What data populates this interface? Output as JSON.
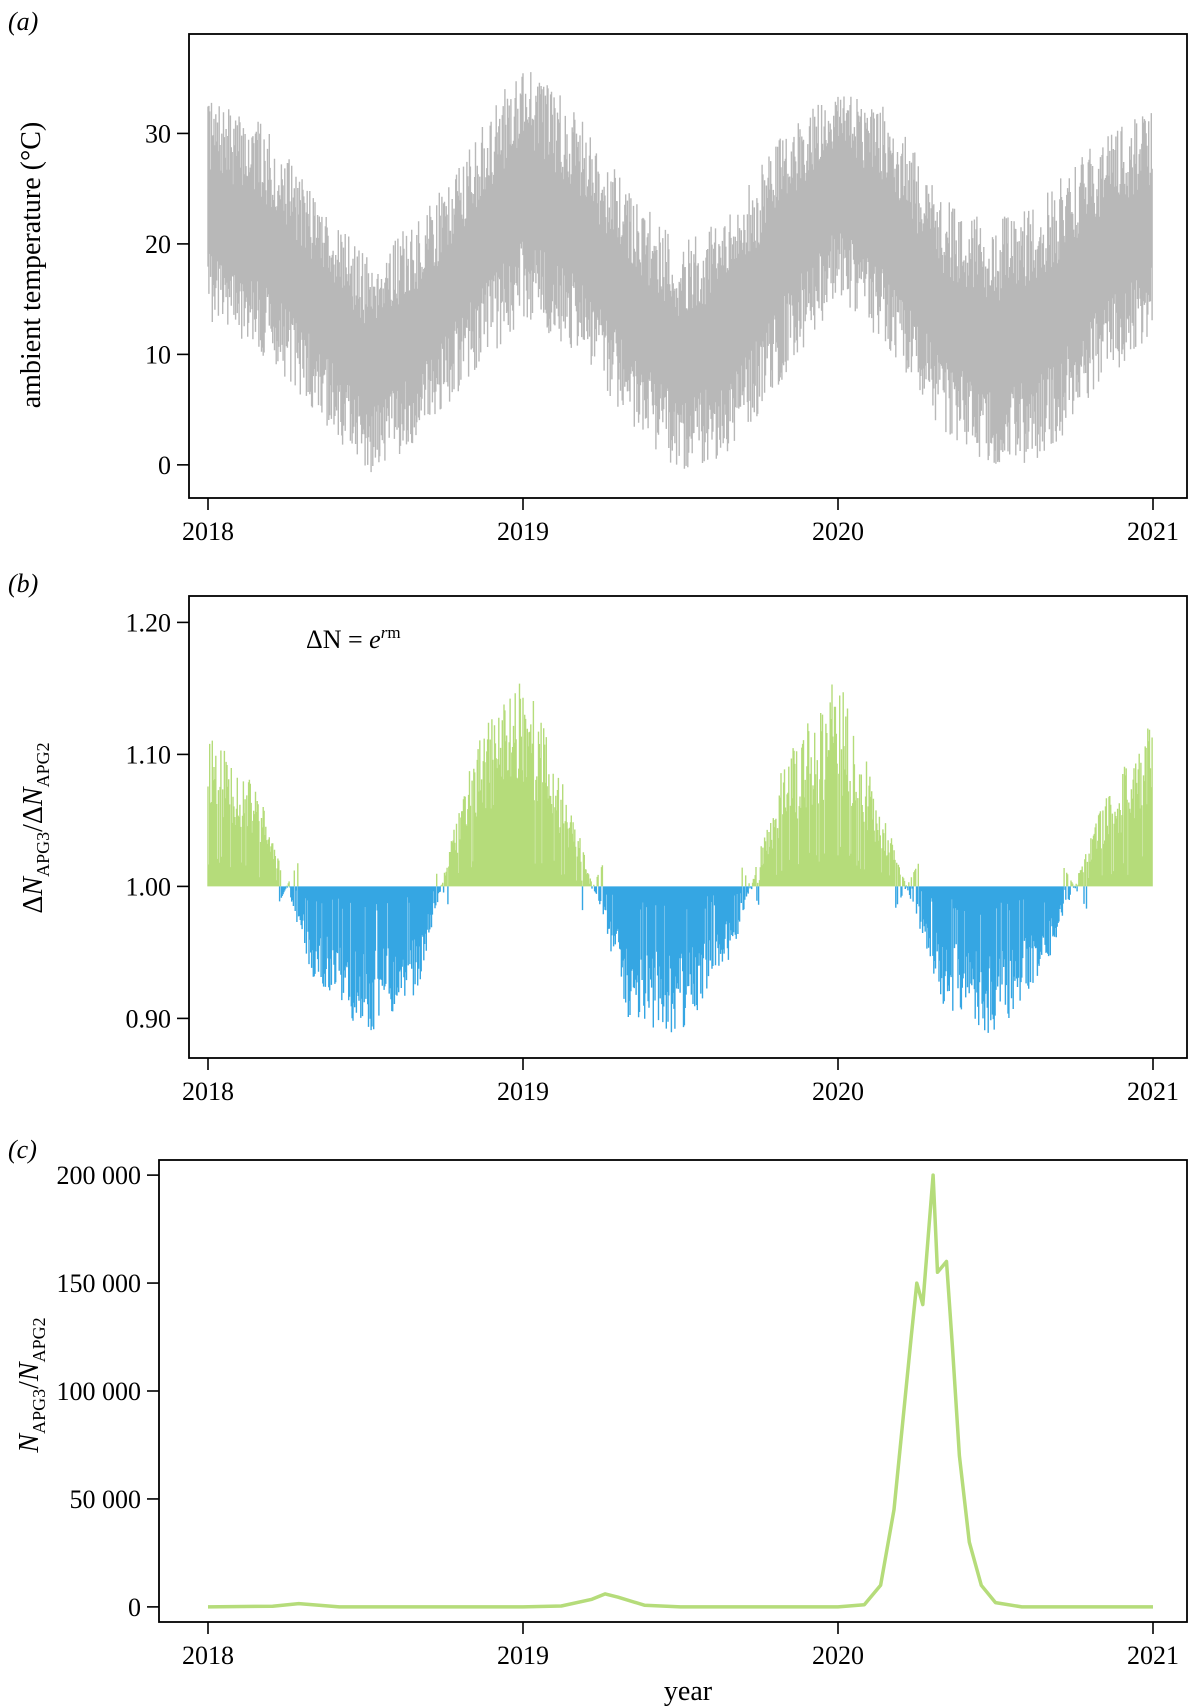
{
  "chart_data": [
    {
      "panel_label": "(a)",
      "type": "line",
      "ylabel": "ambient temperature (°C)",
      "xlabel": "",
      "x_ticks": [
        "2018",
        "2019",
        "2020",
        "2021"
      ],
      "y_ticks": [
        "0",
        "10",
        "20",
        "30"
      ],
      "xlim": [
        "2018",
        "2021"
      ],
      "ylim": [
        -3,
        39
      ],
      "color": "#b8b8b8",
      "description_series": {
        "name": "",
        "x": [
          "2018-01",
          "2018-03",
          "2018-05",
          "2018-07",
          "2018-09",
          "2018-11",
          "2019-01",
          "2019-03",
          "2019-05",
          "2019-07",
          "2019-09",
          "2019-11",
          "2020-01",
          "2020-03",
          "2020-05",
          "2020-07",
          "2020-09",
          "2020-11",
          "2021-01"
        ],
        "min": [
          13,
          10,
          5,
          -1,
          2,
          8,
          13,
          10,
          4,
          -1,
          1,
          8,
          15,
          10,
          3,
          -1,
          1,
          7,
          12
        ],
        "max": [
          33,
          31,
          25,
          19,
          22,
          29,
          37,
          32,
          25,
          20,
          23,
          31,
          35,
          32,
          24,
          22,
          25,
          30,
          32
        ]
      }
    },
    {
      "panel_label": "(b)",
      "type": "bar",
      "ylabel": "ΔN_APG3/ΔN_APG2",
      "xlabel": "",
      "annotation": "ΔN = e^rm",
      "baseline": 1.0,
      "x_ticks": [
        "2018",
        "2019",
        "2020",
        "2021"
      ],
      "y_ticks": [
        "0.90",
        "1.00",
        "1.10",
        "1.20"
      ],
      "xlim": [
        "2018",
        "2021"
      ],
      "ylim": [
        0.87,
        1.22
      ],
      "colors": {
        "above": "#b5dc7a",
        "below": "#35a6e3"
      },
      "envelope": {
        "x": [
          "2018-01",
          "2018-03",
          "2018-05",
          "2018-07",
          "2018-09",
          "2018-11",
          "2019-01",
          "2019-03",
          "2019-05",
          "2019-07",
          "2019-09",
          "2019-11",
          "2020-01",
          "2020-03",
          "2020-05",
          "2020-07",
          "2020-09",
          "2020-11",
          "2021-01"
        ],
        "value": [
          1.13,
          1.07,
          0.93,
          0.885,
          0.92,
          1.1,
          1.17,
          1.05,
          0.9,
          0.885,
          0.95,
          1.1,
          1.16,
          1.04,
          0.91,
          0.885,
          0.94,
          1.06,
          1.13
        ]
      }
    },
    {
      "panel_label": "(c)",
      "type": "line",
      "ylabel": "N_APG3/N_APG2",
      "xlabel": "year",
      "x_ticks": [
        "2018",
        "2019",
        "2020",
        "2021"
      ],
      "y_ticks": [
        "0",
        "50 000",
        "100 000",
        "150 000",
        "200 000"
      ],
      "xlim": [
        "2018",
        "2021"
      ],
      "ylim": [
        -7000,
        207000
      ],
      "color": "#b5dc7a",
      "series": [
        {
          "name": "",
          "x": [
            "2018-01-01",
            "2018-03-15",
            "2018-04-15",
            "2018-06-01",
            "2019-01-01",
            "2019-02-15",
            "2019-03-20",
            "2019-04-05",
            "2019-04-20",
            "2019-05-20",
            "2019-07-01",
            "2020-01-01",
            "2020-02-01",
            "2020-02-20",
            "2020-03-05",
            "2020-03-15",
            "2020-03-25",
            "2020-04-01",
            "2020-04-08",
            "2020-04-15",
            "2020-04-20",
            "2020-04-25",
            "2020-05-05",
            "2020-05-12",
            "2020-05-20",
            "2020-06-01",
            "2020-06-15",
            "2020-07-01",
            "2020-08-01",
            "2021-01-01"
          ],
          "y": [
            0,
            300,
            1500,
            0,
            0,
            400,
            3500,
            6000,
            4500,
            800,
            0,
            0,
            1000,
            10000,
            45000,
            85000,
            125000,
            150000,
            140000,
            175000,
            200000,
            155000,
            160000,
            120000,
            70000,
            30000,
            10000,
            2000,
            0,
            0
          ]
        }
      ]
    }
  ]
}
